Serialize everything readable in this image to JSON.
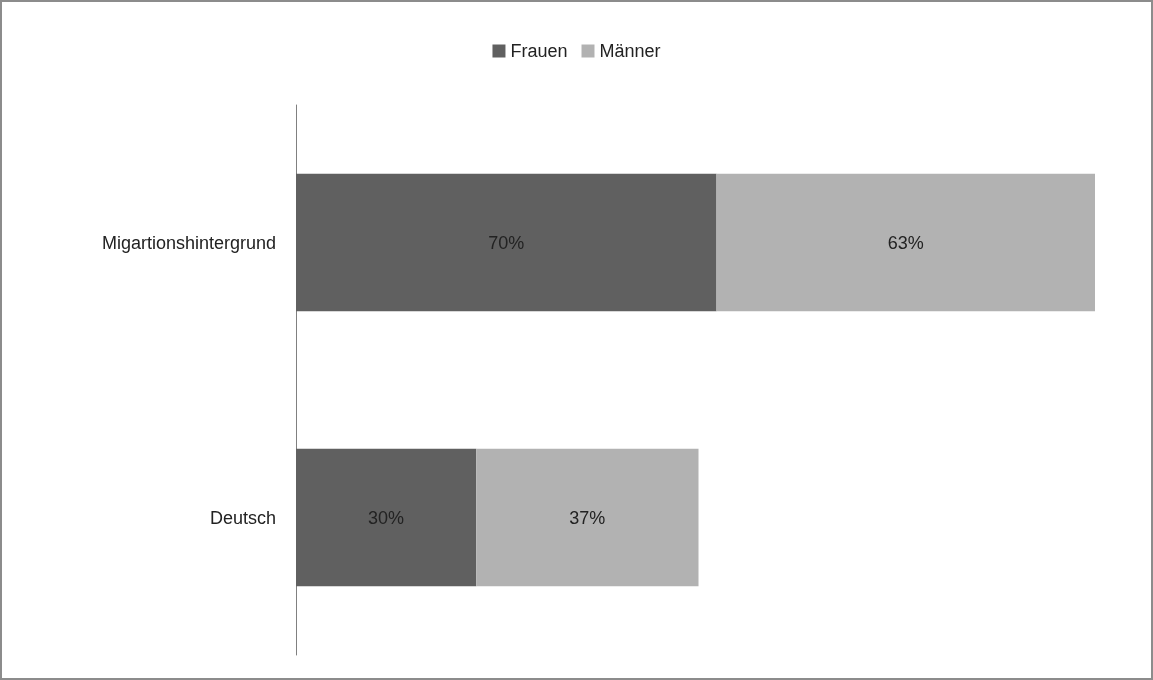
{
  "chart_data": {
    "type": "bar",
    "orientation": "horizontal",
    "stacked": true,
    "categories": [
      "Migartionshintergrund",
      "Deutsch"
    ],
    "series": [
      {
        "name": "Frauen",
        "color": "#606060",
        "values": [
          70,
          30
        ],
        "value_labels": [
          "70%",
          "30%"
        ]
      },
      {
        "name": "Männer",
        "color": "#b2b2b2",
        "values": [
          63,
          37
        ],
        "value_labels": [
          "63%",
          "37%"
        ]
      }
    ],
    "legend": "top",
    "tick_labels": "y"
  }
}
